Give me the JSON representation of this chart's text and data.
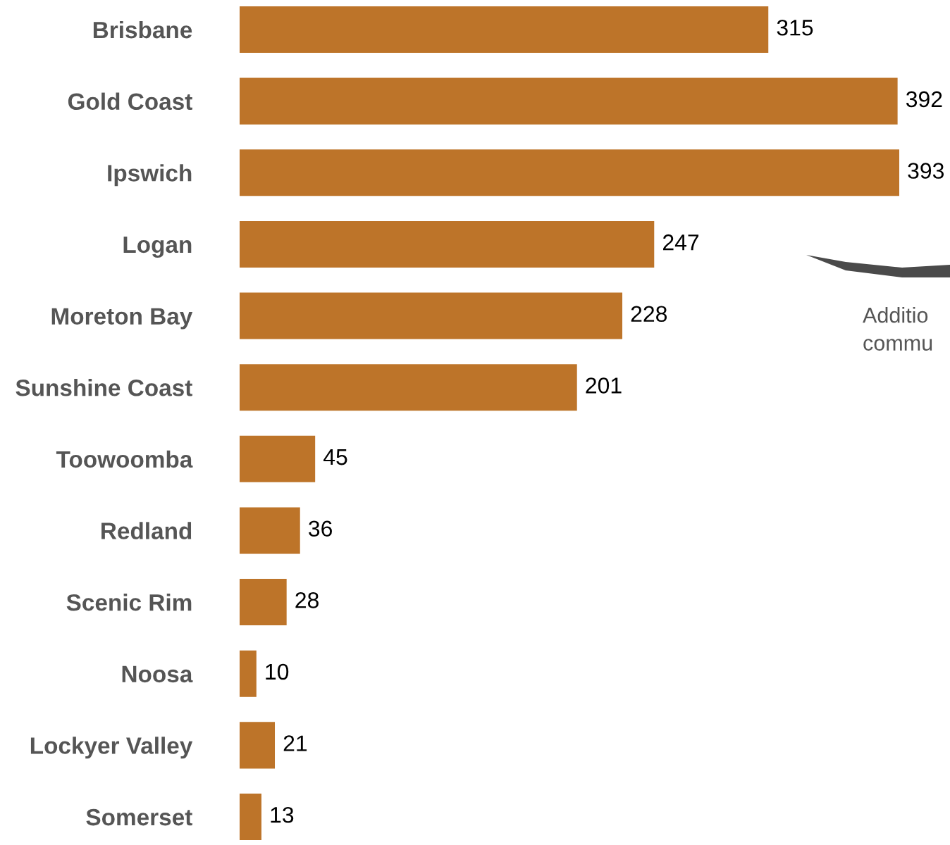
{
  "chart_data": {
    "type": "bar",
    "orientation": "horizontal",
    "categories": [
      "Brisbane",
      "Gold Coast",
      "Ipswich",
      "Logan",
      "Moreton Bay",
      "Sunshine Coast",
      "Toowoomba",
      "Redland",
      "Scenic Rim",
      "Noosa",
      "Lockyer Valley",
      "Somerset"
    ],
    "values": [
      315,
      392,
      393,
      247,
      228,
      201,
      45,
      36,
      28,
      10,
      21,
      13
    ],
    "color": "#bd7429",
    "data_labels": true,
    "annotations": [
      "Additio\ncommu"
    ]
  }
}
